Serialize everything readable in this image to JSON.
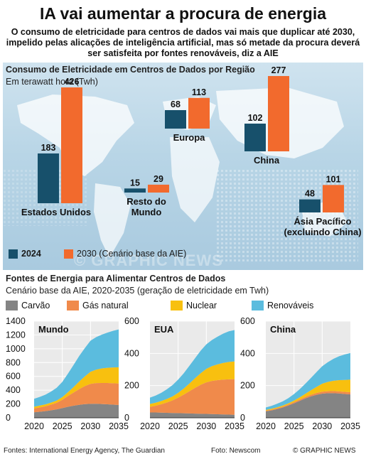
{
  "header": {
    "title": "IA vai aumentar a procura de energia",
    "subtitle": "O consumo de eletricidade para centros de dados vai mais que duplicar até 2030, impelido pelas alicações de inteligência artificial, mas só metade da procura deverá ser satisfeita por fontes renováveis, diz a AIE"
  },
  "colors": {
    "y2024": "#17506b",
    "y2030": "#f26a2d",
    "carvao": "#848484",
    "gas": "#f08a4b",
    "nuclear": "#f8c00f",
    "renovaveis": "#5bbcde"
  },
  "chart_data": [
    {
      "type": "bar",
      "title": "Consumo de Eletricidade em Centros de Dados por Região",
      "subtitle": "Em terawatt hora (Twh)",
      "categories": [
        "Estados Unidos",
        "Europa",
        "Resto do Mundo",
        "China",
        "Ásia Pacífico (excluindo China)"
      ],
      "series": [
        {
          "name": "2024",
          "values": [
            183,
            68,
            15,
            102,
            48
          ]
        },
        {
          "name": "2030 (Cenário base da AIE)",
          "values": [
            426,
            113,
            29,
            277,
            101
          ]
        }
      ]
    },
    {
      "type": "area",
      "panel": "Mundo",
      "x": [
        2020,
        2021,
        2022,
        2023,
        2024,
        2025,
        2026,
        2027,
        2028,
        2029,
        2030,
        2031,
        2032,
        2033,
        2034,
        2035
      ],
      "ylim": [
        0,
        1400
      ],
      "yticks": [
        0,
        200,
        400,
        600,
        800,
        1000,
        1200,
        1400
      ],
      "series": [
        {
          "name": "Carvão",
          "values": [
            80,
            88,
            96,
            108,
            122,
            140,
            160,
            175,
            188,
            198,
            202,
            203,
            200,
            196,
            190,
            185
          ]
        },
        {
          "name": "Gás natural",
          "values": [
            55,
            62,
            70,
            82,
            96,
            120,
            155,
            190,
            228,
            262,
            290,
            300,
            305,
            308,
            310,
            312
          ]
        },
        {
          "name": "Nuclear",
          "values": [
            25,
            27,
            28,
            30,
            32,
            40,
            55,
            80,
            110,
            140,
            175,
            195,
            210,
            220,
            230,
            235
          ]
        },
        {
          "name": "Renováveis",
          "values": [
            115,
            125,
            140,
            160,
            185,
            220,
            270,
            320,
            370,
            410,
            450,
            470,
            490,
            510,
            530,
            548
          ]
        }
      ]
    },
    {
      "type": "area",
      "panel": "EUA",
      "x": [
        2020,
        2021,
        2022,
        2023,
        2024,
        2025,
        2026,
        2027,
        2028,
        2029,
        2030,
        2031,
        2032,
        2033,
        2034,
        2035
      ],
      "ylim": [
        0,
        600
      ],
      "yticks": [
        0,
        200,
        400,
        600
      ],
      "series": [
        {
          "name": "Carvão",
          "values": [
            33,
            33,
            32,
            31,
            30,
            29,
            28,
            27,
            26,
            25,
            24,
            23,
            22,
            21,
            20,
            19
          ]
        },
        {
          "name": "Gás natural",
          "values": [
            35,
            42,
            52,
            64,
            78,
            96,
            116,
            138,
            160,
            180,
            196,
            206,
            212,
            216,
            219,
            221
          ]
        },
        {
          "name": "Nuclear",
          "values": [
            18,
            19,
            20,
            22,
            25,
            30,
            38,
            48,
            60,
            72,
            84,
            92,
            98,
            104,
            108,
            110
          ]
        },
        {
          "name": "Renováveis",
          "values": [
            39,
            44,
            51,
            60,
            70,
            82,
            95,
            110,
            124,
            140,
            152,
            162,
            172,
            182,
            190,
            195
          ]
        }
      ]
    },
    {
      "type": "area",
      "panel": "China",
      "x": [
        2020,
        2021,
        2022,
        2023,
        2024,
        2025,
        2026,
        2027,
        2028,
        2029,
        2030,
        2031,
        2032,
        2033,
        2034,
        2035
      ],
      "ylim": [
        0,
        600
      ],
      "yticks": [
        0,
        200,
        400,
        600
      ],
      "series": [
        {
          "name": "Carvão",
          "values": [
            40,
            46,
            54,
            64,
            76,
            90,
            105,
            120,
            133,
            143,
            150,
            153,
            153,
            151,
            148,
            145
          ]
        },
        {
          "name": "Gás natural",
          "values": [
            4,
            4,
            5,
            5,
            6,
            7,
            8,
            9,
            10,
            11,
            12,
            12,
            13,
            13,
            13,
            14
          ]
        },
        {
          "name": "Nuclear",
          "values": [
            5,
            6,
            6,
            7,
            8,
            10,
            14,
            20,
            28,
            38,
            50,
            58,
            64,
            70,
            74,
            78
          ]
        },
        {
          "name": "Renováveis",
          "values": [
            15,
            18,
            22,
            26,
            32,
            40,
            50,
            62,
            76,
            92,
            108,
            122,
            136,
            148,
            158,
            165
          ]
        }
      ]
    }
  ],
  "map": {
    "title": "Consumo de Eletricidade em Centros de Dados por Região",
    "subtitle": "Em terawatt hora (Twh)",
    "regions": [
      "Estados Unidos",
      "Europa",
      "Resto do Mundo",
      "China",
      "Ásia Pacífico (excluindo China)"
    ],
    "legend_2024": "2024",
    "legend_2030": "2030 (Cenário base da AIE)"
  },
  "sources": {
    "title": "Fontes de Energia para Alimentar Centros de Dados",
    "subtitle": "Cenário base da AIE, 2020-2035 (geração de eletricidade em Twh)",
    "legend": [
      "Carvão",
      "Gás natural",
      "Nuclear",
      "Renováveis"
    ]
  },
  "footer": {
    "sources": "Fontes: International Energy Agency, The Guardian",
    "photo": "Foto: Newscom",
    "credit": "© GRAPHIC NEWS"
  }
}
